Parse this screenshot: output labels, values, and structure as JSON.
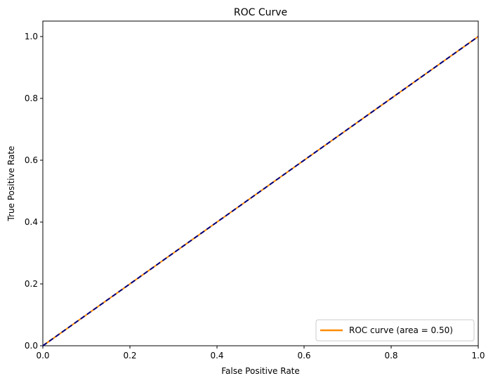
{
  "chart_data": {
    "type": "line",
    "title": "ROC Curve",
    "xlabel": "False Positive Rate",
    "ylabel": "True Positive Rate",
    "xlim": [
      0.0,
      1.0
    ],
    "ylim": [
      0.0,
      1.05
    ],
    "x_ticks": [
      0.0,
      0.2,
      0.4,
      0.6,
      0.8,
      1.0
    ],
    "y_ticks": [
      0.0,
      0.2,
      0.4,
      0.6,
      0.8,
      1.0
    ],
    "x_tick_labels": [
      "0.0",
      "0.2",
      "0.4",
      "0.6",
      "0.8",
      "1.0"
    ],
    "y_tick_labels": [
      "0.0",
      "0.2",
      "0.4",
      "0.6",
      "0.8",
      "1.0"
    ],
    "grid": false,
    "legend_position": "lower-right",
    "series": [
      {
        "name": "ROC curve (area = 0.50)",
        "style": "solid",
        "color": "#ff8c00",
        "x": [
          0.0,
          1.0
        ],
        "y": [
          0.0,
          1.0
        ]
      },
      {
        "style": "dashed",
        "color": "#000080",
        "x": [
          0.0,
          1.0
        ],
        "y": [
          0.0,
          1.0
        ]
      }
    ]
  }
}
